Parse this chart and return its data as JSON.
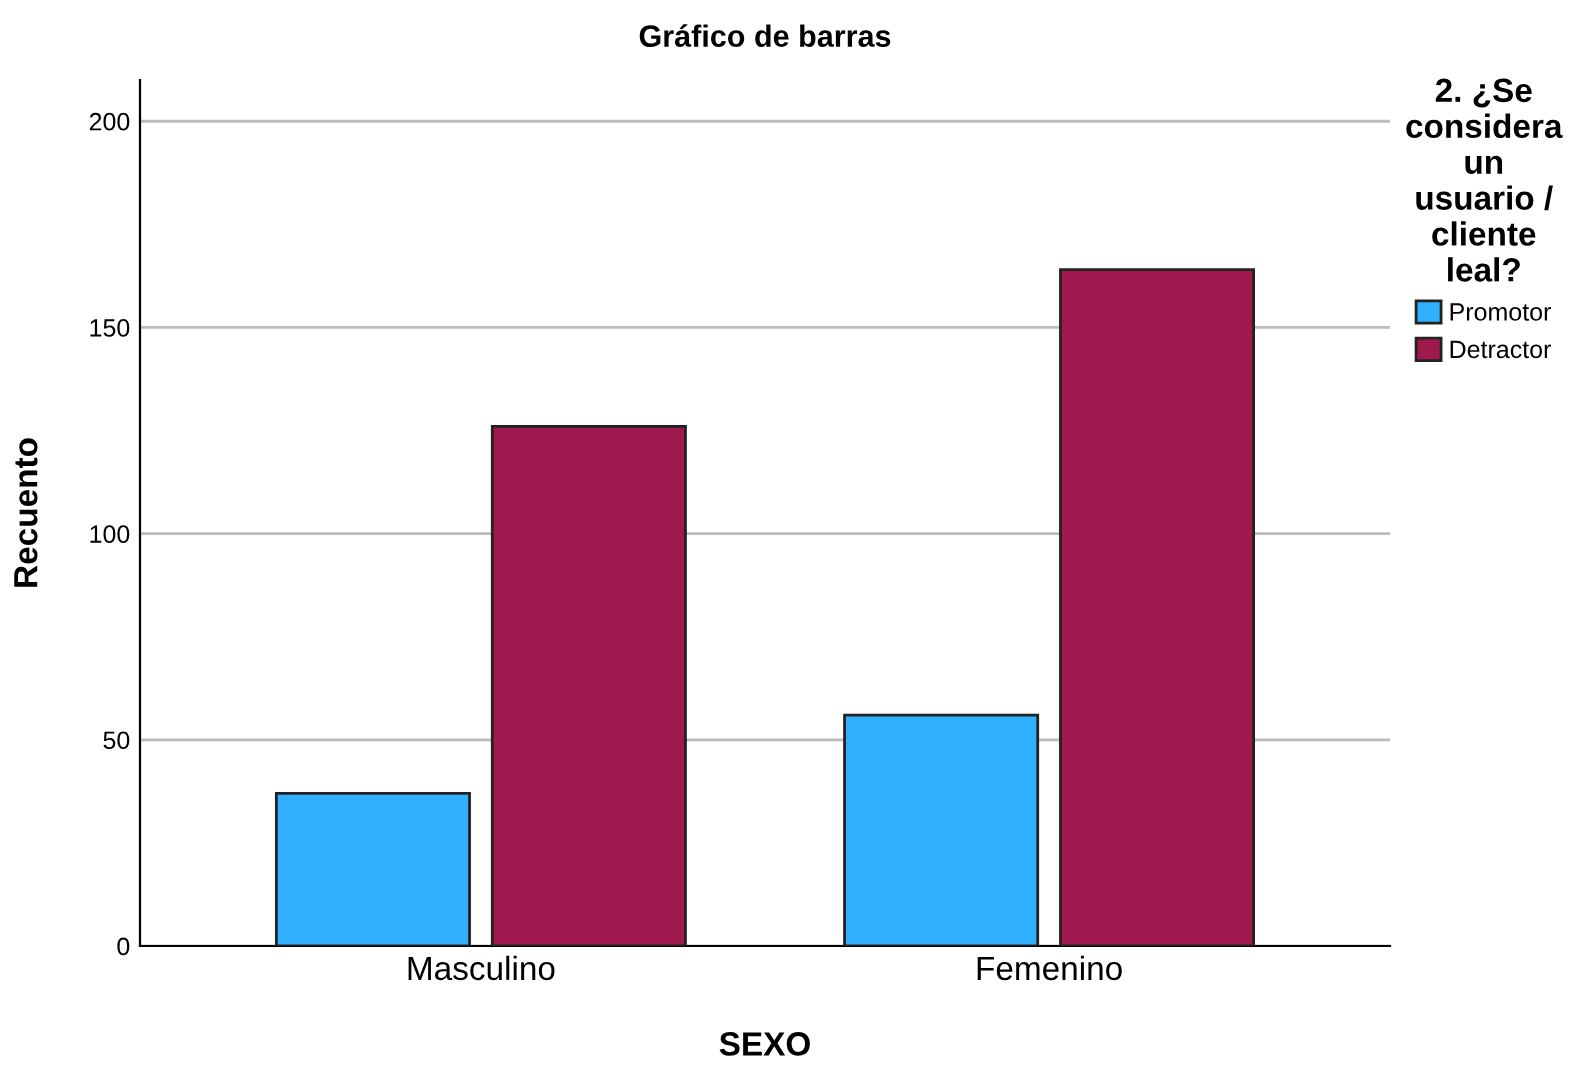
{
  "chart_data": {
    "type": "bar",
    "title": "Gráfico de barras",
    "xlabel": "SEXO",
    "ylabel": "Recuento",
    "legend_title": "2. ¿Se\nconsidera\nun\nusuario /\ncliente\nleal?",
    "categories": [
      "Masculino",
      "Femenino"
    ],
    "series": [
      {
        "name": "Promotor",
        "color": "#30b0ff",
        "values": [
          37,
          56
        ]
      },
      {
        "name": "Detractor",
        "color": "#a0194e",
        "values": [
          126,
          164
        ]
      }
    ],
    "ylim": [
      0,
      210
    ],
    "yticks": [
      0,
      50,
      100,
      150,
      200
    ],
    "grid": "y",
    "legend": "top right"
  }
}
